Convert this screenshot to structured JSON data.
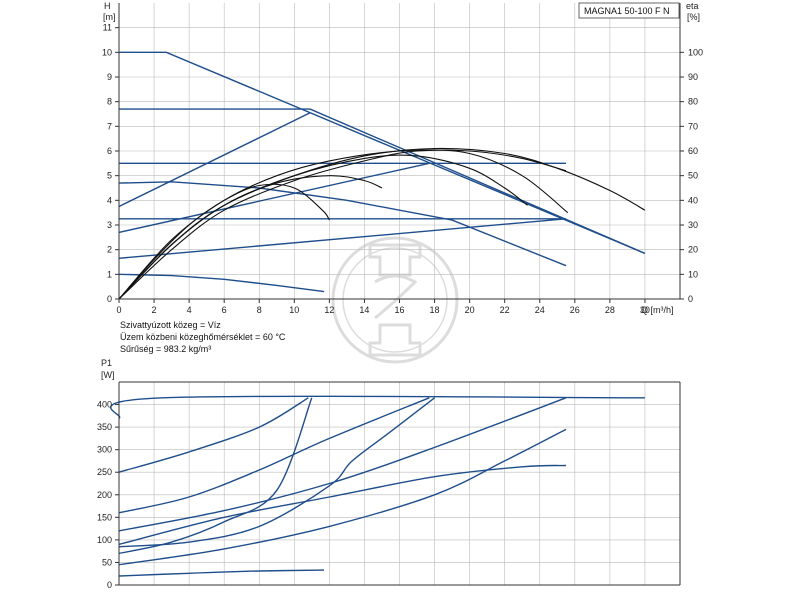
{
  "model_label": "MAGNA1 50-100 F N",
  "medium_info": [
    "Szivattyúzott közeg = Víz",
    "Üzem közbeni közeghőmérséklet = 60 °C",
    "Sűrűség = 983.2 kg/m³"
  ],
  "colors": {
    "curve": "#1f4e8c",
    "efficiency": "#111111",
    "grid": "#bbbbbb",
    "axis": "#333333"
  },
  "chart_data": [
    {
      "type": "line",
      "y_axis_label": [
        "H",
        "[m]"
      ],
      "y2_axis_label": [
        "eta",
        "[%]"
      ],
      "x_axis_label": "Q [m³/h]",
      "xlim": [
        0,
        32
      ],
      "ylim": [
        0,
        12
      ],
      "y2lim": [
        0,
        120
      ],
      "x_ticks": [
        0,
        2,
        4,
        6,
        8,
        10,
        12,
        14,
        16,
        18,
        20,
        22,
        24,
        26,
        28,
        30
      ],
      "y_ticks": [
        0,
        1,
        2,
        3,
        4,
        5,
        6,
        7,
        8,
        9,
        10,
        11
      ],
      "y2_ticks": [
        0,
        10,
        20,
        30,
        40,
        50,
        60,
        70,
        80,
        90,
        100
      ],
      "grid": true,
      "series": [
        {
          "kind": "head",
          "points": [
            [
              0,
              10
            ],
            [
              2.7,
              10
            ],
            [
              30,
              1.85
            ]
          ]
        },
        {
          "kind": "head",
          "points": [
            [
              0,
              7.7
            ],
            [
              10.9,
              7.7
            ],
            [
              30,
              1.85
            ]
          ]
        },
        {
          "kind": "head",
          "points": [
            [
              0,
              5.5
            ],
            [
              25.5,
              5.5
            ]
          ]
        },
        {
          "kind": "head",
          "points": [
            [
              0,
              3.25
            ],
            [
              25.5,
              3.25
            ]
          ]
        },
        {
          "kind": "head",
          "points": [
            [
              0,
              3.75
            ],
            [
              10.9,
              7.55
            ]
          ]
        },
        {
          "kind": "head",
          "points": [
            [
              0,
              2.7
            ],
            [
              17.7,
              5.5
            ]
          ]
        },
        {
          "kind": "head",
          "points": [
            [
              0,
              1.65
            ],
            [
              25.5,
              3.25
            ]
          ]
        },
        {
          "kind": "head",
          "points": [
            [
              0,
              4.7
            ],
            [
              3,
              4.75
            ],
            [
              8,
              4.5
            ],
            [
              13,
              4.0
            ],
            [
              19,
              3.2
            ],
            [
              25.5,
              1.35
            ]
          ]
        },
        {
          "kind": "head",
          "points": [
            [
              0,
              1.0
            ],
            [
              3,
              0.95
            ],
            [
              6,
              0.8
            ],
            [
              9,
              0.55
            ],
            [
              11.7,
              0.3
            ]
          ]
        },
        {
          "kind": "efficiency",
          "points": [
            [
              0,
              0
            ],
            [
              2,
              16
            ],
            [
              4,
              30
            ],
            [
              6,
              40
            ],
            [
              8,
              46
            ],
            [
              10,
              45
            ],
            [
              11.6,
              36
            ],
            [
              12,
              32
            ]
          ]
        },
        {
          "kind": "efficiency",
          "points": [
            [
              0,
              0
            ],
            [
              3,
              22
            ],
            [
              6,
              38
            ],
            [
              9,
              47
            ],
            [
              12,
              50
            ],
            [
              14,
              48
            ],
            [
              15,
              45
            ]
          ]
        },
        {
          "kind": "efficiency",
          "points": [
            [
              0,
              0
            ],
            [
              3,
              22
            ],
            [
              6,
              38
            ],
            [
              10,
              50
            ],
            [
              14,
              57
            ],
            [
              17,
              58
            ],
            [
              20,
              53
            ],
            [
              22,
              45
            ],
            [
              23.3,
              38
            ]
          ]
        },
        {
          "kind": "efficiency",
          "points": [
            [
              0,
              0
            ],
            [
              3,
              20
            ],
            [
              6,
              36
            ],
            [
              10,
              48
            ],
            [
              14,
              56
            ],
            [
              17,
              60
            ],
            [
              20,
              59
            ],
            [
              23,
              50
            ],
            [
              25.6,
              35
            ]
          ]
        },
        {
          "kind": "efficiency",
          "points": [
            [
              0,
              0
            ],
            [
              3,
              24
            ],
            [
              6,
              40
            ],
            [
              9,
              50
            ],
            [
              12,
              56
            ],
            [
              16,
              60
            ],
            [
              20,
              60
            ],
            [
              23,
              57
            ],
            [
              25.5,
              52
            ]
          ]
        },
        {
          "kind": "efficiency",
          "points": [
            [
              0,
              0
            ],
            [
              3,
              22
            ],
            [
              6,
              38
            ],
            [
              10,
              50
            ],
            [
              14,
              58
            ],
            [
              18,
              61
            ],
            [
              22,
              59
            ],
            [
              25,
              53
            ],
            [
              28,
              44
            ],
            [
              30,
              36
            ]
          ]
        }
      ]
    },
    {
      "type": "line",
      "y_axis_label": [
        "P1",
        "[W]"
      ],
      "xlim": [
        0,
        32
      ],
      "ylim": [
        0,
        450
      ],
      "y_ticks": [
        0,
        50,
        100,
        150,
        200,
        250,
        300,
        350,
        400
      ],
      "grid": true,
      "series": [
        {
          "kind": "power",
          "points": [
            [
              0,
              370
            ],
            [
              2.5,
              415
            ],
            [
              30,
              415
            ]
          ]
        },
        {
          "kind": "power",
          "points": [
            [
              0,
              250
            ],
            [
              4,
              295
            ],
            [
              8,
              350
            ],
            [
              10.8,
              415
            ]
          ]
        },
        {
          "kind": "power",
          "points": [
            [
              0,
              160
            ],
            [
              4,
              195
            ],
            [
              8,
              255
            ],
            [
              12,
              325
            ],
            [
              17.7,
              415
            ]
          ]
        },
        {
          "kind": "power",
          "points": [
            [
              0,
              120
            ],
            [
              6,
              165
            ],
            [
              12,
              225
            ],
            [
              18,
              305
            ],
            [
              25.5,
              415
            ]
          ]
        },
        {
          "kind": "power",
          "points": [
            [
              0,
              85
            ],
            [
              4,
              95
            ],
            [
              8,
              130
            ],
            [
              12,
              220
            ],
            [
              13.3,
              275
            ],
            [
              15.5,
              340
            ],
            [
              18,
              415
            ]
          ]
        },
        {
          "kind": "power",
          "points": [
            [
              0,
              70
            ],
            [
              3,
              95
            ],
            [
              6,
              140
            ],
            [
              9,
              210
            ],
            [
              11,
              415
            ]
          ]
        },
        {
          "kind": "power",
          "points": [
            [
              0,
              90
            ],
            [
              6,
              150
            ],
            [
              12,
              195
            ],
            [
              18,
              240
            ],
            [
              23,
              262
            ],
            [
              25.5,
              265
            ]
          ]
        },
        {
          "kind": "power",
          "points": [
            [
              0,
              45
            ],
            [
              6,
              80
            ],
            [
              12,
              130
            ],
            [
              18,
              200
            ],
            [
              22,
              275
            ],
            [
              25.5,
              345
            ]
          ]
        },
        {
          "kind": "power",
          "points": [
            [
              0,
              20
            ],
            [
              4,
              26
            ],
            [
              8,
              31
            ],
            [
              11.7,
              33
            ]
          ]
        }
      ]
    }
  ]
}
